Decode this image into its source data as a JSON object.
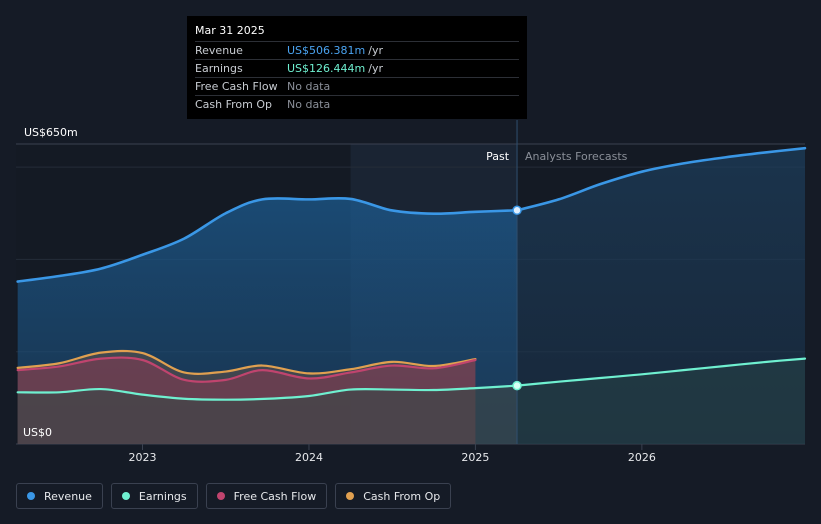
{
  "chart_data": {
    "type": "area",
    "y_top_label": "US$650m",
    "y_bottom_label": "US$0",
    "ylim": [
      0,
      650
    ],
    "xlim": [
      2022.24,
      2026.98
    ],
    "x_ticks": [
      {
        "label": "2023",
        "value": 2023.0
      },
      {
        "label": "2024",
        "value": 2024.0
      },
      {
        "label": "2025",
        "value": 2025.0
      },
      {
        "label": "2026",
        "value": 2026.0
      }
    ],
    "past_label": "Past",
    "forecast_label": "Analysts Forecasts",
    "past_end_x": 2025.25,
    "highlight_start_x": 2024.25,
    "series": [
      {
        "name": "Revenue",
        "color": "#3a97e6",
        "x": [
          2022.25,
          2022.5,
          2022.75,
          2023.0,
          2023.25,
          2023.5,
          2023.72,
          2024.0,
          2024.25,
          2024.5,
          2024.75,
          2025.0,
          2025.25
        ],
        "values": [
          352,
          364,
          380,
          410,
          445,
          500,
          530,
          530,
          531,
          506,
          499,
          503,
          506.381
        ]
      },
      {
        "name": "Revenue forecast",
        "color": "#3a97e6",
        "forecast": true,
        "x": [
          2025.25,
          2025.5,
          2025.75,
          2026.0,
          2026.25,
          2026.5,
          2026.75,
          2026.98
        ],
        "values": [
          506.381,
          530,
          563,
          590,
          608,
          621,
          632,
          641
        ]
      },
      {
        "name": "Earnings",
        "color": "#6ff0d0",
        "x": [
          2022.25,
          2022.5,
          2022.75,
          2023.0,
          2023.25,
          2023.5,
          2023.75,
          2024.0,
          2024.25,
          2024.5,
          2024.75,
          2025.0,
          2025.25
        ],
        "values": [
          112,
          112,
          119,
          107,
          98,
          96,
          98,
          104,
          118,
          118,
          117,
          121,
          126.444
        ]
      },
      {
        "name": "Earnings forecast",
        "color": "#6ff0d0",
        "forecast": true,
        "x": [
          2025.25,
          2025.5,
          2025.75,
          2026.0,
          2026.25,
          2026.5,
          2026.75,
          2026.98
        ],
        "values": [
          126.444,
          135,
          143,
          151,
          160,
          169,
          178,
          185
        ]
      },
      {
        "name": "Free Cash Flow",
        "color": "#c0446e",
        "x": [
          2022.25,
          2022.5,
          2022.75,
          2023.0,
          2023.25,
          2023.5,
          2023.72,
          2024.0,
          2024.25,
          2024.5,
          2024.75,
          2025.0
        ],
        "values": [
          160,
          168,
          185,
          182,
          139,
          139,
          160,
          142,
          155,
          170,
          164,
          182
        ]
      },
      {
        "name": "Cash From Op",
        "color": "#e0a050",
        "x": [
          2022.25,
          2022.5,
          2022.75,
          2023.0,
          2023.25,
          2023.5,
          2023.72,
          2024.0,
          2024.25,
          2024.5,
          2024.75,
          2025.0
        ],
        "values": [
          165,
          175,
          198,
          197,
          155,
          157,
          170,
          153,
          162,
          178,
          169,
          184
        ]
      }
    ],
    "markers": [
      {
        "series": "Revenue",
        "x": 2025.25,
        "value": 506.381,
        "color": "#3a97e6"
      },
      {
        "series": "Earnings",
        "x": 2025.25,
        "value": 126.444,
        "color": "#6ff0d0"
      }
    ]
  },
  "tooltip": {
    "date": "Mar 31 2025",
    "rows": [
      {
        "label": "Revenue",
        "value": "US$506.381m",
        "unit": "/yr"
      },
      {
        "label": "Earnings",
        "value": "US$126.444m",
        "unit": "/yr"
      },
      {
        "label": "Free Cash Flow",
        "value": "No data",
        "unit": ""
      },
      {
        "label": "Cash From Op",
        "value": "No data",
        "unit": ""
      }
    ]
  },
  "legend": [
    {
      "label": "Revenue",
      "color": "#3a97e6"
    },
    {
      "label": "Earnings",
      "color": "#6ff0d0"
    },
    {
      "label": "Free Cash Flow",
      "color": "#c0446e"
    },
    {
      "label": "Cash From Op",
      "color": "#e0a050"
    }
  ]
}
